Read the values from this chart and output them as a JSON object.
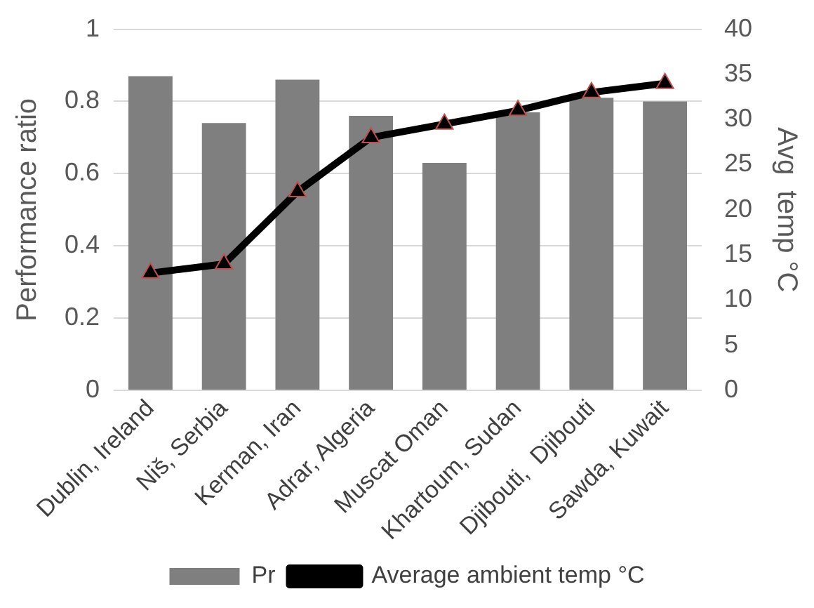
{
  "chart_data": {
    "type": "bar",
    "ylabel": "Performance ratio",
    "y2label": "Avg  temp °C",
    "categories": [
      "Dublin, Ireland",
      "Niš, Serbia",
      "Kerman, Iran",
      "Adrar, Algeria",
      "Muscat Oman",
      "Khartoum, Sudan",
      "Djibouti,  Djibouti",
      "Sawda, Kuwait"
    ],
    "series": [
      {
        "name": "Pr",
        "color": "#7f7f7f",
        "values": [
          0.87,
          0.74,
          0.86,
          0.76,
          0.63,
          0.77,
          0.81,
          0.8
        ]
      },
      {
        "name": "Average ambient temp °C",
        "type": "line",
        "axis": "y2",
        "color": "#000000",
        "marker": "triangle",
        "values": [
          13,
          14,
          22,
          28,
          29.5,
          31,
          33,
          34
        ]
      }
    ],
    "ylim": [
      0,
      1
    ],
    "yticks": [
      0,
      0.2,
      0.4,
      0.6,
      0.8,
      1
    ],
    "y2lim": [
      0,
      40
    ],
    "y2ticks": [
      0,
      5,
      10,
      15,
      20,
      25,
      30,
      35,
      40
    ],
    "grid": "y",
    "legend": "bottom"
  }
}
